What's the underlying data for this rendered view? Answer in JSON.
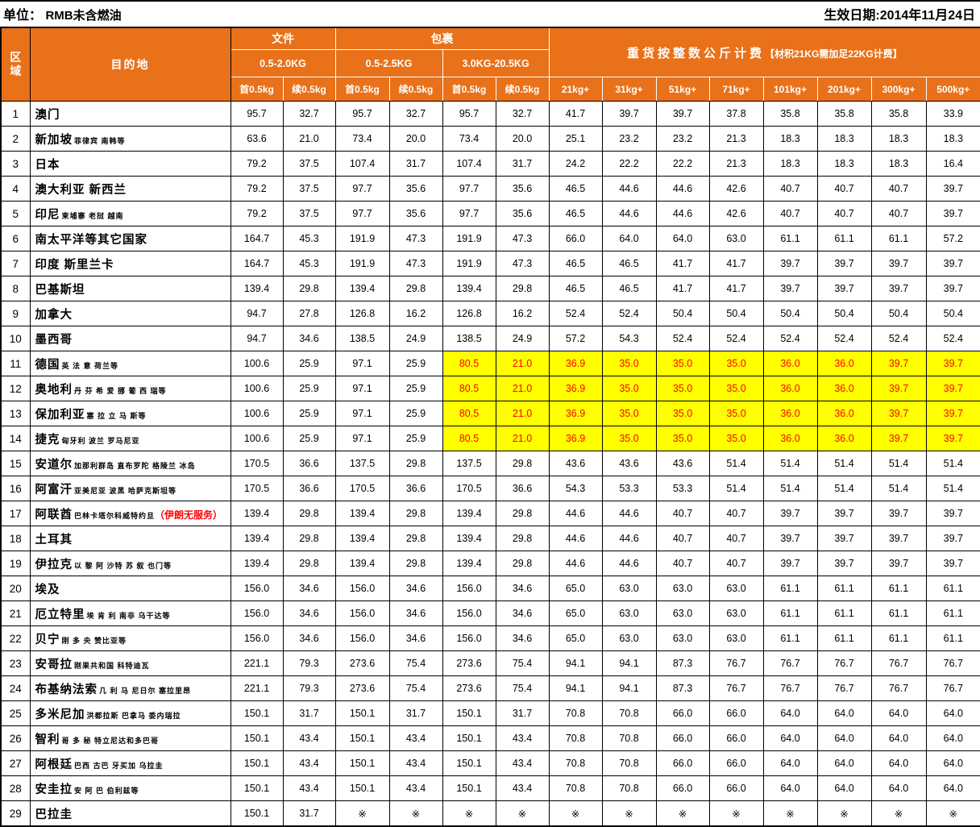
{
  "meta": {
    "unit_label": "单位：",
    "unit_value": "RMB未含燃油",
    "effective_date": "生效日期:2014年11月24日"
  },
  "colors": {
    "header_bg": "#E8711A",
    "highlight_bg": "#FFFF00",
    "highlight_text": "#FF0000",
    "note_text": "#FF0000",
    "border": "#000000"
  },
  "header": {
    "region": "区域",
    "destination": "目的地",
    "documents": "文件",
    "parcels": "包裹",
    "heavy_title": "重货按整数公斤计费",
    "heavy_note": "【材积21KG需加足22KG计费】",
    "doc_weight": "0.5-2.0KG",
    "parcel_weight_1": "0.5-2.5KG",
    "parcel_weight_2": "3.0KG-20.5KG",
    "sub_cols": [
      "首0.5kg",
      "续0.5kg",
      "首0.5kg",
      "续0.5kg",
      "首0.5kg",
      "续0.5kg"
    ],
    "heavy_cols": [
      "21kg+",
      "31kg+",
      "51kg+",
      "71kg+",
      "101kg+",
      "201kg+",
      "300kg+",
      "500kg+"
    ]
  },
  "rows": [
    {
      "no": "1",
      "dest": "澳门",
      "sub": "",
      "note": "",
      "highlight": false,
      "values": [
        "95.7",
        "32.7",
        "95.7",
        "32.7",
        "95.7",
        "32.7",
        "41.7",
        "39.7",
        "39.7",
        "37.8",
        "35.8",
        "35.8",
        "35.8",
        "33.9"
      ]
    },
    {
      "no": "2",
      "dest": "新加坡",
      "sub": "菲律宾 南韩等",
      "note": "",
      "highlight": false,
      "values": [
        "63.6",
        "21.0",
        "73.4",
        "20.0",
        "73.4",
        "20.0",
        "25.1",
        "23.2",
        "23.2",
        "21.3",
        "18.3",
        "18.3",
        "18.3",
        "18.3"
      ]
    },
    {
      "no": "3",
      "dest": "日本",
      "sub": "",
      "note": "",
      "highlight": false,
      "values": [
        "79.2",
        "37.5",
        "107.4",
        "31.7",
        "107.4",
        "31.7",
        "24.2",
        "22.2",
        "22.2",
        "21.3",
        "18.3",
        "18.3",
        "18.3",
        "16.4"
      ]
    },
    {
      "no": "4",
      "dest": "澳大利亚 新西兰",
      "sub": "",
      "note": "",
      "highlight": false,
      "values": [
        "79.2",
        "37.5",
        "97.7",
        "35.6",
        "97.7",
        "35.6",
        "46.5",
        "44.6",
        "44.6",
        "42.6",
        "40.7",
        "40.7",
        "40.7",
        "39.7"
      ]
    },
    {
      "no": "5",
      "dest": "印尼",
      "sub": "柬埔寨 老挝 越南",
      "note": "",
      "highlight": false,
      "values": [
        "79.2",
        "37.5",
        "97.7",
        "35.6",
        "97.7",
        "35.6",
        "46.5",
        "44.6",
        "44.6",
        "42.6",
        "40.7",
        "40.7",
        "40.7",
        "39.7"
      ]
    },
    {
      "no": "6",
      "dest": "南太平洋等其它国家",
      "sub": "",
      "note": "",
      "highlight": false,
      "values": [
        "164.7",
        "45.3",
        "191.9",
        "47.3",
        "191.9",
        "47.3",
        "66.0",
        "64.0",
        "64.0",
        "63.0",
        "61.1",
        "61.1",
        "61.1",
        "57.2"
      ]
    },
    {
      "no": "7",
      "dest": "印度 斯里兰卡",
      "sub": "",
      "note": "",
      "highlight": false,
      "values": [
        "164.7",
        "45.3",
        "191.9",
        "47.3",
        "191.9",
        "47.3",
        "46.5",
        "46.5",
        "41.7",
        "41.7",
        "39.7",
        "39.7",
        "39.7",
        "39.7"
      ]
    },
    {
      "no": "8",
      "dest": "巴基斯坦",
      "sub": "",
      "note": "",
      "highlight": false,
      "values": [
        "139.4",
        "29.8",
        "139.4",
        "29.8",
        "139.4",
        "29.8",
        "46.5",
        "46.5",
        "41.7",
        "41.7",
        "39.7",
        "39.7",
        "39.7",
        "39.7"
      ]
    },
    {
      "no": "9",
      "dest": "加拿大",
      "sub": "",
      "note": "",
      "highlight": false,
      "values": [
        "94.7",
        "27.8",
        "126.8",
        "16.2",
        "126.8",
        "16.2",
        "52.4",
        "52.4",
        "50.4",
        "50.4",
        "50.4",
        "50.4",
        "50.4",
        "50.4"
      ]
    },
    {
      "no": "10",
      "dest": "墨西哥",
      "sub": "",
      "note": "",
      "highlight": false,
      "values": [
        "94.7",
        "34.6",
        "138.5",
        "24.9",
        "138.5",
        "24.9",
        "57.2",
        "54.3",
        "52.4",
        "52.4",
        "52.4",
        "52.4",
        "52.4",
        "52.4"
      ]
    },
    {
      "no": "11",
      "dest": "德国",
      "sub": "英 法 意 荷兰等",
      "note": "",
      "highlight": true,
      "values": [
        "100.6",
        "25.9",
        "97.1",
        "25.9",
        "80.5",
        "21.0",
        "36.9",
        "35.0",
        "35.0",
        "35.0",
        "36.0",
        "36.0",
        "39.7",
        "39.7"
      ]
    },
    {
      "no": "12",
      "dest": "奥地利",
      "sub": "丹 芬 希 爱 挪 葡 西 瑞等",
      "note": "",
      "highlight": true,
      "values": [
        "100.6",
        "25.9",
        "97.1",
        "25.9",
        "80.5",
        "21.0",
        "36.9",
        "35.0",
        "35.0",
        "35.0",
        "36.0",
        "36.0",
        "39.7",
        "39.7"
      ]
    },
    {
      "no": "13",
      "dest": "保加利亚",
      "sub": "塞 拉 立 马 斯等",
      "note": "",
      "highlight": true,
      "values": [
        "100.6",
        "25.9",
        "97.1",
        "25.9",
        "80.5",
        "21.0",
        "36.9",
        "35.0",
        "35.0",
        "35.0",
        "36.0",
        "36.0",
        "39.7",
        "39.7"
      ]
    },
    {
      "no": "14",
      "dest": "捷克",
      "sub": "匈牙利 波兰 罗马尼亚",
      "note": "",
      "highlight": true,
      "values": [
        "100.6",
        "25.9",
        "97.1",
        "25.9",
        "80.5",
        "21.0",
        "36.9",
        "35.0",
        "35.0",
        "35.0",
        "36.0",
        "36.0",
        "39.7",
        "39.7"
      ]
    },
    {
      "no": "15",
      "dest": "安道尔",
      "sub": "加那利群岛 直布罗陀 格陵兰 冰岛",
      "note": "",
      "highlight": false,
      "values": [
        "170.5",
        "36.6",
        "137.5",
        "29.8",
        "137.5",
        "29.8",
        "43.6",
        "43.6",
        "43.6",
        "51.4",
        "51.4",
        "51.4",
        "51.4",
        "51.4"
      ]
    },
    {
      "no": "16",
      "dest": "阿富汗",
      "sub": "亚美尼亚 波黑 哈萨克斯坦等",
      "note": "",
      "highlight": false,
      "values": [
        "170.5",
        "36.6",
        "170.5",
        "36.6",
        "170.5",
        "36.6",
        "54.3",
        "53.3",
        "53.3",
        "51.4",
        "51.4",
        "51.4",
        "51.4",
        "51.4"
      ]
    },
    {
      "no": "17",
      "dest": "阿联酋",
      "sub": "巴林卡塔尔科威特约旦",
      "note": "（伊朗无服务）",
      "highlight": false,
      "values": [
        "139.4",
        "29.8",
        "139.4",
        "29.8",
        "139.4",
        "29.8",
        "44.6",
        "44.6",
        "40.7",
        "40.7",
        "39.7",
        "39.7",
        "39.7",
        "39.7"
      ]
    },
    {
      "no": "18",
      "dest": "土耳其",
      "sub": "",
      "note": "",
      "highlight": false,
      "values": [
        "139.4",
        "29.8",
        "139.4",
        "29.8",
        "139.4",
        "29.8",
        "44.6",
        "44.6",
        "40.7",
        "40.7",
        "39.7",
        "39.7",
        "39.7",
        "39.7"
      ]
    },
    {
      "no": "19",
      "dest": "伊拉克",
      "sub": "以 黎 阿 沙特 苏 叙 也门等",
      "note": "",
      "highlight": false,
      "values": [
        "139.4",
        "29.8",
        "139.4",
        "29.8",
        "139.4",
        "29.8",
        "44.6",
        "44.6",
        "40.7",
        "40.7",
        "39.7",
        "39.7",
        "39.7",
        "39.7"
      ]
    },
    {
      "no": "20",
      "dest": "埃及",
      "sub": "",
      "note": "",
      "highlight": false,
      "values": [
        "156.0",
        "34.6",
        "156.0",
        "34.6",
        "156.0",
        "34.6",
        "65.0",
        "63.0",
        "63.0",
        "63.0",
        "61.1",
        "61.1",
        "61.1",
        "61.1"
      ]
    },
    {
      "no": "21",
      "dest": "厄立特里",
      "sub": "埃 肯 利 南非 乌干达等",
      "note": "",
      "highlight": false,
      "values": [
        "156.0",
        "34.6",
        "156.0",
        "34.6",
        "156.0",
        "34.6",
        "65.0",
        "63.0",
        "63.0",
        "63.0",
        "61.1",
        "61.1",
        "61.1",
        "61.1"
      ]
    },
    {
      "no": "22",
      "dest": "贝宁",
      "sub": "刚 多 央 赞比亚等",
      "note": "",
      "highlight": false,
      "values": [
        "156.0",
        "34.6",
        "156.0",
        "34.6",
        "156.0",
        "34.6",
        "65.0",
        "63.0",
        "63.0",
        "63.0",
        "61.1",
        "61.1",
        "61.1",
        "61.1"
      ]
    },
    {
      "no": "23",
      "dest": "安哥拉",
      "sub": "刚果共和国 科特迪瓦",
      "note": "",
      "highlight": false,
      "values": [
        "221.1",
        "79.3",
        "273.6",
        "75.4",
        "273.6",
        "75.4",
        "94.1",
        "94.1",
        "87.3",
        "76.7",
        "76.7",
        "76.7",
        "76.7",
        "76.7"
      ]
    },
    {
      "no": "24",
      "dest": "布基纳法索",
      "sub": "几 利 马 尼日尔 塞拉里昂",
      "note": "",
      "highlight": false,
      "values": [
        "221.1",
        "79.3",
        "273.6",
        "75.4",
        "273.6",
        "75.4",
        "94.1",
        "94.1",
        "87.3",
        "76.7",
        "76.7",
        "76.7",
        "76.7",
        "76.7"
      ]
    },
    {
      "no": "25",
      "dest": "多米尼加",
      "sub": "洪都拉斯 巴拿马 委内瑞拉",
      "note": "",
      "highlight": false,
      "values": [
        "150.1",
        "31.7",
        "150.1",
        "31.7",
        "150.1",
        "31.7",
        "70.8",
        "70.8",
        "66.0",
        "66.0",
        "64.0",
        "64.0",
        "64.0",
        "64.0"
      ]
    },
    {
      "no": "26",
      "dest": "智利",
      "sub": "哥 多 秘 特立尼达和多巴哥",
      "note": "",
      "highlight": false,
      "values": [
        "150.1",
        "43.4",
        "150.1",
        "43.4",
        "150.1",
        "43.4",
        "70.8",
        "70.8",
        "66.0",
        "66.0",
        "64.0",
        "64.0",
        "64.0",
        "64.0"
      ]
    },
    {
      "no": "27",
      "dest": "阿根廷",
      "sub": "巴西 古巴 牙买加 乌拉圭",
      "note": "",
      "highlight": false,
      "values": [
        "150.1",
        "43.4",
        "150.1",
        "43.4",
        "150.1",
        "43.4",
        "70.8",
        "70.8",
        "66.0",
        "66.0",
        "64.0",
        "64.0",
        "64.0",
        "64.0"
      ]
    },
    {
      "no": "28",
      "dest": "安圭拉",
      "sub": "安 阿 巴 伯利兹等",
      "note": "",
      "highlight": false,
      "values": [
        "150.1",
        "43.4",
        "150.1",
        "43.4",
        "150.1",
        "43.4",
        "70.8",
        "70.8",
        "66.0",
        "66.0",
        "64.0",
        "64.0",
        "64.0",
        "64.0"
      ]
    },
    {
      "no": "29",
      "dest": "巴拉圭",
      "sub": "",
      "note": "",
      "highlight": false,
      "values": [
        "150.1",
        "31.7",
        "※",
        "※",
        "※",
        "※",
        "※",
        "※",
        "※",
        "※",
        "※",
        "※",
        "※",
        "※"
      ]
    }
  ]
}
